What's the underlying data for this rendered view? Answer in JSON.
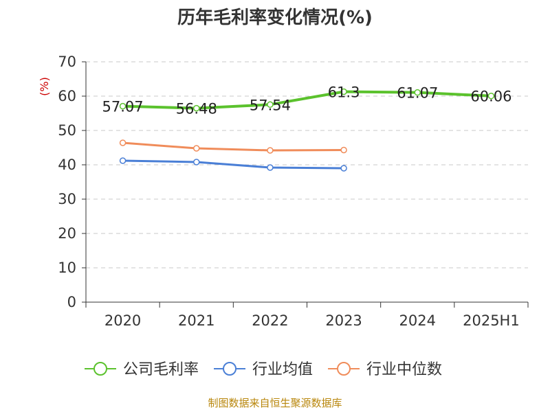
{
  "chart_data": {
    "type": "line",
    "title": "历年毛利率变化情况(%)",
    "ylabel": "(%)",
    "categories": [
      "2020",
      "2021",
      "2022",
      "2023",
      "2024",
      "2025H1"
    ],
    "ylim": [
      0,
      70
    ],
    "yticks": [
      0,
      10,
      20,
      30,
      40,
      50,
      60,
      70
    ],
    "grid": true,
    "legend_position": "bottom",
    "series": [
      {
        "name": "公司毛利率",
        "color": "#5bc22d",
        "values": [
          57.07,
          56.48,
          57.54,
          61.3,
          61.07,
          60.06
        ],
        "labels": [
          "57.07",
          "56.48",
          "57.54",
          "61.3",
          "61.07",
          "60.06"
        ]
      },
      {
        "name": "行业均值",
        "color": "#4a7fd6",
        "values": [
          41.2,
          40.8,
          39.2,
          39.0,
          null,
          null
        ]
      },
      {
        "name": "行业中位数",
        "color": "#f08c5a",
        "values": [
          46.4,
          44.8,
          44.2,
          44.3,
          null,
          null
        ]
      }
    ]
  },
  "source_text": "制图数据来自恒生聚源数据库"
}
